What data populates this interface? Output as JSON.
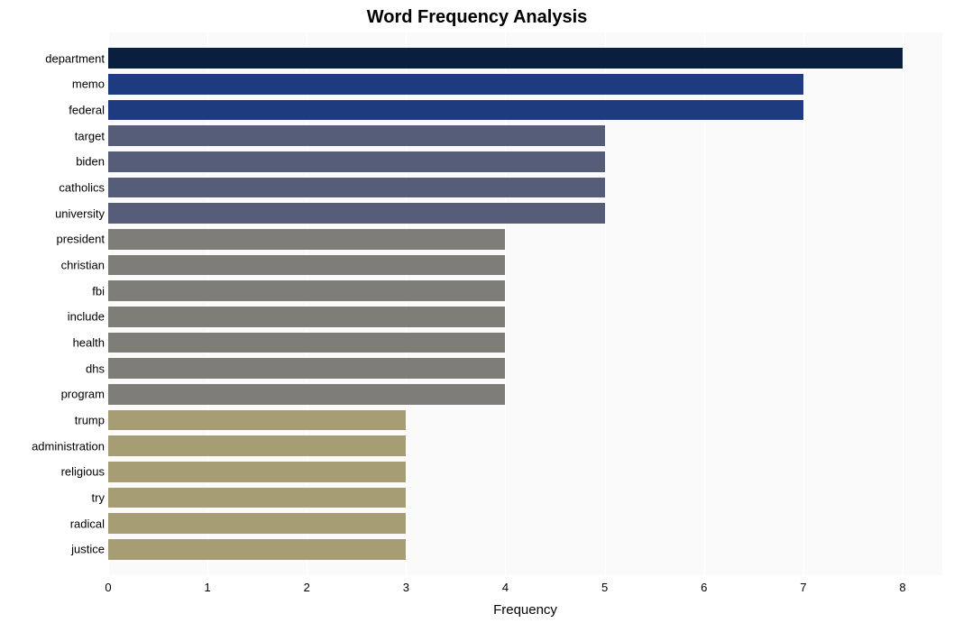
{
  "chart": {
    "type": "bar_horizontal",
    "title": "Word Frequency Analysis",
    "title_fontsize": 20,
    "title_fontweight": "bold",
    "xlabel": "Frequency",
    "xlabel_fontsize": 15,
    "background_color": "#ffffff",
    "plot_background_color": "#fafafa",
    "grid_color": "#ffffff",
    "axis_label_color": "#000000",
    "tick_fontsize": 13,
    "x": {
      "min": 0,
      "max": 8.4,
      "ticks": [
        0,
        1,
        2,
        3,
        4,
        5,
        6,
        7,
        8
      ]
    },
    "bar_height_ratio": 0.8,
    "words": [
      {
        "label": "department",
        "value": 8,
        "color": "#091f3d"
      },
      {
        "label": "memo",
        "value": 7,
        "color": "#1e3b80"
      },
      {
        "label": "federal",
        "value": 7,
        "color": "#1e3b80"
      },
      {
        "label": "target",
        "value": 5,
        "color": "#565d78"
      },
      {
        "label": "biden",
        "value": 5,
        "color": "#565d78"
      },
      {
        "label": "catholics",
        "value": 5,
        "color": "#565d78"
      },
      {
        "label": "university",
        "value": 5,
        "color": "#565d78"
      },
      {
        "label": "president",
        "value": 4,
        "color": "#7f7d77"
      },
      {
        "label": "christian",
        "value": 4,
        "color": "#7f7d77"
      },
      {
        "label": "fbi",
        "value": 4,
        "color": "#7f7d77"
      },
      {
        "label": "include",
        "value": 4,
        "color": "#7f7d77"
      },
      {
        "label": "health",
        "value": 4,
        "color": "#7f7d77"
      },
      {
        "label": "dhs",
        "value": 4,
        "color": "#7f7d77"
      },
      {
        "label": "program",
        "value": 4,
        "color": "#7f7d77"
      },
      {
        "label": "trump",
        "value": 3,
        "color": "#a69d74"
      },
      {
        "label": "administration",
        "value": 3,
        "color": "#a69d74"
      },
      {
        "label": "religious",
        "value": 3,
        "color": "#a69d74"
      },
      {
        "label": "try",
        "value": 3,
        "color": "#a69d74"
      },
      {
        "label": "radical",
        "value": 3,
        "color": "#a69d74"
      },
      {
        "label": "justice",
        "value": 3,
        "color": "#a69d74"
      }
    ]
  }
}
